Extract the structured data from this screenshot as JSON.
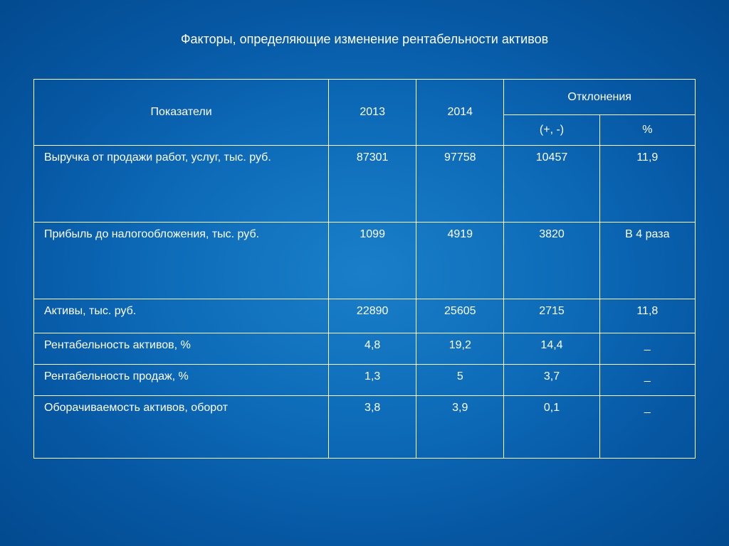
{
  "slide": {
    "title": "Факторы, определяющие изменение рентабельности активов",
    "background_gradient": {
      "center": "#1a7fc9",
      "mid": "#0d6bb8",
      "outer": "#034a8f"
    },
    "text_color": "#ffffff",
    "border_color": "#ffffff",
    "title_fontsize": 18,
    "cell_fontsize": 16
  },
  "table": {
    "type": "table",
    "headers": {
      "indicator": "Показатели",
      "year1": "2013",
      "year2": "2014",
      "deviations": "Отклонения",
      "dev_abs": "(+, -)",
      "dev_pct": "%"
    },
    "rows": [
      {
        "indicator": "Выручка от продажи работ, услуг, тыс. руб.",
        "year1": "87301",
        "year2": "97758",
        "dev_abs": "10457",
        "dev_pct": "11,9",
        "height": "tall"
      },
      {
        "indicator": "Прибыль до налогообложения, тыс. руб.",
        "year1": "1099",
        "year2": "4919",
        "dev_abs": "3820",
        "dev_pct": "В 4  раза",
        "height": "tall"
      },
      {
        "indicator": "Активы, тыс. руб.",
        "year1": "22890",
        "year2": "25605",
        "dev_abs": "2715",
        "dev_pct": "11,8",
        "height": "medium"
      },
      {
        "indicator": "Рентабельность активов, %",
        "year1": "4,8",
        "year2": "19,2",
        "dev_abs": "14,4",
        "dev_pct": "_",
        "height": "short"
      },
      {
        "indicator": "Рентабельность продаж, %",
        "year1": "1,3",
        "year2": "5",
        "dev_abs": "3,7",
        "dev_pct": "_",
        "height": "short"
      },
      {
        "indicator": "Оборачиваемость активов, оборот",
        "year1": "3,8",
        "year2": "3,9",
        "dev_abs": "0,1",
        "dev_pct": "_",
        "height": "last"
      }
    ],
    "column_widths": {
      "indicator": 370,
      "year": 110,
      "deviation": 120
    }
  }
}
